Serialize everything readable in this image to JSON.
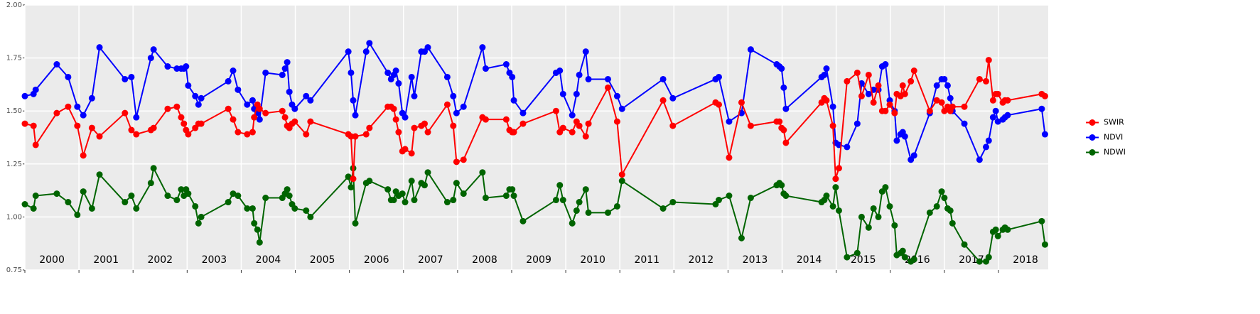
{
  "chart_data": {
    "type": "line",
    "x": [
      2000.0,
      2000.16,
      2000.2,
      2000.59,
      2000.8,
      2000.97,
      2001.08,
      2001.24,
      2001.38,
      2001.85,
      2001.97,
      2002.06,
      2002.33,
      2002.38,
      2002.64,
      2002.81,
      2002.89,
      2002.94,
      2002.98,
      2003.02,
      2003.15,
      2003.21,
      2003.26,
      2003.76,
      2003.85,
      2003.94,
      2004.11,
      2004.21,
      2004.24,
      2004.3,
      2004.34,
      2004.45,
      2004.76,
      2004.81,
      2004.85,
      2004.89,
      2004.94,
      2004.99,
      2005.2,
      2005.28,
      2005.98,
      2006.03,
      2006.07,
      2006.11,
      2006.31,
      2006.37,
      2006.71,
      2006.77,
      2006.82,
      2006.86,
      2006.91,
      2006.98,
      2007.03,
      2007.15,
      2007.2,
      2007.33,
      2007.39,
      2007.45,
      2007.81,
      2007.92,
      2007.98,
      2008.11,
      2008.46,
      2008.52,
      2008.9,
      2008.96,
      2009.01,
      2009.04,
      2009.21,
      2009.82,
      2009.89,
      2009.95,
      2010.12,
      2010.2,
      2010.25,
      2010.37,
      2010.42,
      2010.78,
      2010.95,
      2011.04,
      2011.8,
      2011.98,
      2012.77,
      2012.83,
      2013.02,
      2013.25,
      2013.42,
      2013.9,
      2013.95,
      2013.99,
      2014.03,
      2014.07,
      2014.73,
      2014.78,
      2014.82,
      2014.94,
      2014.99,
      2015.05,
      2015.2,
      2015.39,
      2015.47,
      2015.6,
      2015.69,
      2015.78,
      2015.85,
      2015.91,
      2015.99,
      2016.08,
      2016.12,
      2016.19,
      2016.23,
      2016.27,
      2016.38,
      2016.44,
      2016.73,
      2016.86,
      2016.95,
      2017.0,
      2017.06,
      2017.11,
      2017.15,
      2017.37,
      2017.65,
      2017.77,
      2017.82,
      2017.9,
      2017.95,
      2017.99,
      2018.08,
      2018.12,
      2018.17,
      2018.8,
      2018.86
    ],
    "series": [
      {
        "name": "SWIR",
        "color": "#ff0000",
        "values": [
          1.44,
          1.43,
          1.34,
          1.49,
          1.52,
          1.43,
          1.29,
          1.42,
          1.38,
          1.49,
          1.41,
          1.39,
          1.41,
          1.42,
          1.51,
          1.52,
          1.47,
          1.44,
          1.41,
          1.39,
          1.42,
          1.44,
          1.44,
          1.51,
          1.46,
          1.4,
          1.39,
          1.4,
          1.47,
          1.53,
          1.51,
          1.49,
          1.5,
          1.47,
          1.43,
          1.42,
          1.44,
          1.45,
          1.39,
          1.45,
          1.39,
          1.38,
          1.18,
          1.38,
          1.39,
          1.42,
          1.52,
          1.52,
          1.51,
          1.46,
          1.4,
          1.31,
          1.32,
          1.3,
          1.42,
          1.43,
          1.44,
          1.4,
          1.53,
          1.43,
          1.26,
          1.27,
          1.47,
          1.46,
          1.46,
          1.41,
          1.4,
          1.4,
          1.44,
          1.5,
          1.4,
          1.42,
          1.4,
          1.45,
          1.43,
          1.38,
          1.44,
          1.61,
          1.45,
          1.2,
          1.55,
          1.43,
          1.54,
          1.53,
          1.28,
          1.54,
          1.43,
          1.45,
          1.45,
          1.42,
          1.41,
          1.35,
          1.54,
          1.56,
          1.55,
          1.43,
          1.18,
          1.23,
          1.64,
          1.68,
          1.57,
          1.67,
          1.54,
          1.62,
          1.5,
          1.5,
          1.53,
          1.49,
          1.58,
          1.57,
          1.62,
          1.58,
          1.64,
          1.69,
          1.5,
          1.55,
          1.54,
          1.5,
          1.52,
          1.5,
          1.52,
          1.52,
          1.65,
          1.64,
          1.74,
          1.55,
          1.58,
          1.58,
          1.54,
          1.55,
          1.55,
          1.58,
          1.57
        ]
      },
      {
        "name": "NDVI",
        "color": "#0000ff",
        "values": [
          1.57,
          1.58,
          1.6,
          1.72,
          1.66,
          1.52,
          1.48,
          1.56,
          1.8,
          1.65,
          1.66,
          1.47,
          1.75,
          1.79,
          1.71,
          1.7,
          1.7,
          1.7,
          1.71,
          1.62,
          1.57,
          1.53,
          1.56,
          1.64,
          1.69,
          1.6,
          1.53,
          1.55,
          1.51,
          1.49,
          1.46,
          1.68,
          1.67,
          1.7,
          1.73,
          1.59,
          1.53,
          1.51,
          1.57,
          1.55,
          1.78,
          1.68,
          1.55,
          1.48,
          1.78,
          1.82,
          1.68,
          1.65,
          1.67,
          1.69,
          1.63,
          1.49,
          1.47,
          1.66,
          1.57,
          1.78,
          1.78,
          1.8,
          1.66,
          1.57,
          1.49,
          1.52,
          1.8,
          1.7,
          1.72,
          1.68,
          1.66,
          1.55,
          1.49,
          1.68,
          1.69,
          1.58,
          1.48,
          1.58,
          1.67,
          1.78,
          1.65,
          1.65,
          1.57,
          1.51,
          1.65,
          1.56,
          1.65,
          1.66,
          1.45,
          1.49,
          1.79,
          1.72,
          1.71,
          1.7,
          1.61,
          1.51,
          1.66,
          1.67,
          1.7,
          1.52,
          1.35,
          1.34,
          1.33,
          1.44,
          1.63,
          1.58,
          1.6,
          1.6,
          1.71,
          1.72,
          1.55,
          1.5,
          1.36,
          1.39,
          1.4,
          1.38,
          1.27,
          1.29,
          1.49,
          1.62,
          1.65,
          1.65,
          1.62,
          1.56,
          1.5,
          1.44,
          1.27,
          1.33,
          1.36,
          1.47,
          1.5,
          1.45,
          1.46,
          1.47,
          1.48,
          1.51,
          1.39
        ]
      },
      {
        "name": "NDWI",
        "color": "#006400",
        "values": [
          1.06,
          1.04,
          1.1,
          1.11,
          1.07,
          1.01,
          1.12,
          1.04,
          1.2,
          1.07,
          1.1,
          1.04,
          1.16,
          1.23,
          1.1,
          1.08,
          1.13,
          1.1,
          1.13,
          1.11,
          1.05,
          0.97,
          1.0,
          1.07,
          1.11,
          1.1,
          1.04,
          1.04,
          0.97,
          0.94,
          0.88,
          1.09,
          1.09,
          1.11,
          1.13,
          1.1,
          1.06,
          1.04,
          1.03,
          1.0,
          1.19,
          1.14,
          1.23,
          0.97,
          1.16,
          1.17,
          1.13,
          1.08,
          1.08,
          1.12,
          1.1,
          1.11,
          1.07,
          1.17,
          1.08,
          1.16,
          1.15,
          1.21,
          1.07,
          1.08,
          1.16,
          1.11,
          1.21,
          1.09,
          1.1,
          1.13,
          1.13,
          1.1,
          0.98,
          1.08,
          1.15,
          1.08,
          0.97,
          1.03,
          1.07,
          1.13,
          1.02,
          1.02,
          1.05,
          1.17,
          1.04,
          1.07,
          1.06,
          1.08,
          1.1,
          0.9,
          1.09,
          1.15,
          1.16,
          1.15,
          1.11,
          1.1,
          1.07,
          1.08,
          1.1,
          1.05,
          1.14,
          1.03,
          0.81,
          0.83,
          1.0,
          0.95,
          1.04,
          1.0,
          1.12,
          1.14,
          1.05,
          0.96,
          0.82,
          0.83,
          0.84,
          0.81,
          0.79,
          0.8,
          1.02,
          1.05,
          1.12,
          1.09,
          1.04,
          1.03,
          0.97,
          0.87,
          0.79,
          0.79,
          0.81,
          0.93,
          0.94,
          0.91,
          0.94,
          0.95,
          0.94,
          0.98,
          0.87
        ]
      }
    ],
    "xlim": [
      2000,
      2018.92
    ],
    "xticks": [
      2000,
      2001,
      2002,
      2003,
      2004,
      2005,
      2006,
      2007,
      2008,
      2009,
      2010,
      2011,
      2012,
      2013,
      2014,
      2015,
      2016,
      2017,
      2018
    ],
    "ylim": [
      0.75,
      2.0
    ],
    "yticks": [
      {
        "value": 0.75,
        "label": "0.75"
      },
      {
        "value": 1.0,
        "label": "1.00"
      },
      {
        "value": 1.25,
        "label": "1.25"
      },
      {
        "value": 1.5,
        "label": "1.50"
      },
      {
        "value": 1.75,
        "label": "1.75"
      },
      {
        "value": 2.0,
        "label": "2.00"
      }
    ],
    "grid": true,
    "legend": "right"
  }
}
